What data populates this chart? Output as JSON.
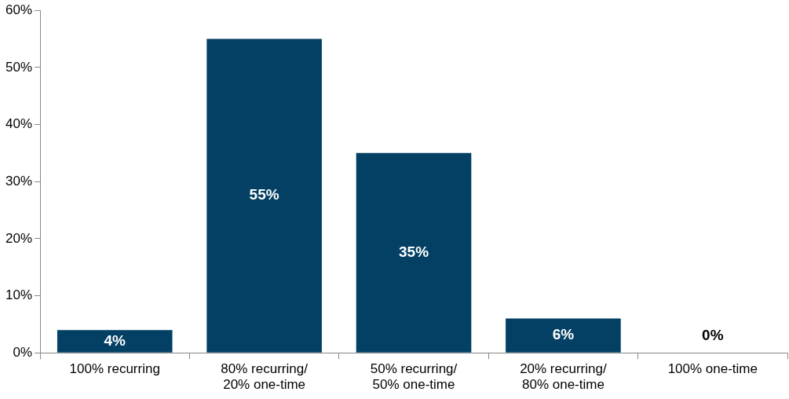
{
  "chart_data": {
    "type": "bar",
    "categories": [
      "100% recurring",
      "80% recurring/ 20% one-time",
      "50% recurring/ 50% one-time",
      "20% recurring/ 80% one-time",
      "100% one-time"
    ],
    "values": [
      4,
      55,
      35,
      6,
      0
    ],
    "value_labels": [
      "4%",
      "55%",
      "35%",
      "6%",
      "0%"
    ],
    "color": "#034063",
    "ylim": [
      0,
      60
    ],
    "yticks": [
      {
        "value": 0,
        "label": "0%"
      },
      {
        "value": 10,
        "label": "10%"
      },
      {
        "value": 20,
        "label": "20%"
      },
      {
        "value": 30,
        "label": "30%"
      },
      {
        "value": 40,
        "label": "40%"
      },
      {
        "value": 50,
        "label": "50%"
      },
      {
        "value": 60,
        "label": "60%"
      }
    ],
    "grid": false,
    "legend": false
  }
}
